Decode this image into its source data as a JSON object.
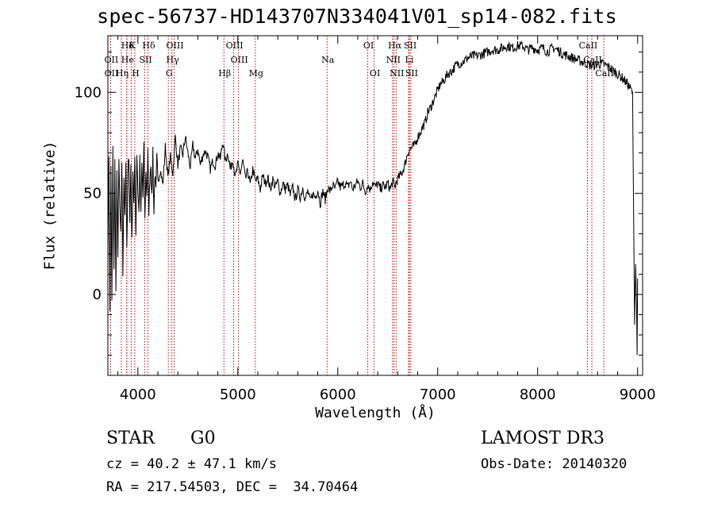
{
  "chart_data": {
    "type": "line",
    "title": "spec-56737-HD143707N334041V01_sp14-082.fits",
    "xlabel": "Wavelength (Å)",
    "ylabel": "Flux (relative)",
    "xlim": [
      3700,
      9050
    ],
    "ylim": [
      -40,
      128
    ],
    "xticks": [
      4000,
      5000,
      6000,
      7000,
      8000,
      9000
    ],
    "yticks": [
      0,
      50,
      100
    ],
    "series": [
      {
        "name": "flux",
        "x": [
          3700,
          3710,
          3720,
          3730,
          3740,
          3750,
          3760,
          3770,
          3780,
          3790,
          3800,
          3810,
          3820,
          3830,
          3840,
          3850,
          3860,
          3870,
          3880,
          3890,
          3900,
          3910,
          3920,
          3930,
          3940,
          3950,
          3960,
          3970,
          3980,
          3990,
          4000,
          4010,
          4020,
          4030,
          4040,
          4050,
          4060,
          4070,
          4080,
          4090,
          4100,
          4110,
          4120,
          4130,
          4140,
          4150,
          4160,
          4170,
          4180,
          4190,
          4200,
          4225,
          4250,
          4275,
          4300,
          4325,
          4350,
          4375,
          4400,
          4425,
          4450,
          4475,
          4500,
          4525,
          4550,
          4575,
          4600,
          4625,
          4650,
          4675,
          4700,
          4725,
          4750,
          4775,
          4800,
          4825,
          4850,
          4875,
          4900,
          4925,
          4950,
          4975,
          5000,
          5025,
          5050,
          5075,
          5100,
          5125,
          5150,
          5175,
          5200,
          5225,
          5250,
          5275,
          5300,
          5325,
          5350,
          5375,
          5400,
          5425,
          5450,
          5475,
          5500,
          5525,
          5550,
          5575,
          5600,
          5625,
          5650,
          5675,
          5700,
          5725,
          5750,
          5775,
          5800,
          5825,
          5850,
          5875,
          5900,
          5925,
          5950,
          5975,
          6000,
          6025,
          6050,
          6075,
          6100,
          6125,
          6150,
          6175,
          6200,
          6225,
          6250,
          6275,
          6300,
          6325,
          6350,
          6375,
          6400,
          6425,
          6450,
          6475,
          6500,
          6525,
          6550,
          6560,
          6570,
          6580,
          6600,
          6625,
          6650,
          6675,
          6700,
          6725,
          6750,
          6775,
          6800,
          6825,
          6850,
          6875,
          6900,
          6925,
          6950,
          6975,
          7000,
          7025,
          7050,
          7075,
          7100,
          7125,
          7150,
          7175,
          7200,
          7250,
          7300,
          7350,
          7400,
          7450,
          7500,
          7550,
          7600,
          7650,
          7700,
          7750,
          7800,
          7850,
          7900,
          7950,
          8000,
          8050,
          8100,
          8150,
          8200,
          8250,
          8300,
          8350,
          8400,
          8450,
          8500,
          8550,
          8600,
          8650,
          8700,
          8750,
          8800,
          8850,
          8900,
          8950,
          8960,
          8970,
          8980,
          8990,
          8995,
          9000
        ],
        "y": [
          20,
          70,
          -10,
          65,
          -5,
          72,
          10,
          68,
          0,
          60,
          15,
          70,
          40,
          30,
          62,
          10,
          55,
          42,
          66,
          20,
          58,
          70,
          35,
          65,
          25,
          62,
          44,
          68,
          30,
          70,
          52,
          40,
          66,
          38,
          64,
          48,
          72,
          36,
          60,
          50,
          70,
          42,
          58,
          66,
          46,
          72,
          40,
          60,
          50,
          67,
          56,
          62,
          54,
          73,
          58,
          68,
          60,
          78,
          64,
          72,
          69,
          78,
          70,
          63,
          74,
          67,
          72,
          64,
          69,
          71,
          68,
          62,
          66,
          64,
          70,
          67,
          76,
          66,
          70,
          62,
          67,
          58,
          64,
          60,
          66,
          57,
          61,
          54,
          62,
          56,
          57,
          52,
          59,
          55,
          58,
          52,
          57,
          53,
          56,
          50,
          55,
          52,
          54,
          49,
          53,
          47,
          52,
          48,
          53,
          47,
          51,
          46,
          50,
          48,
          52,
          45,
          51,
          47,
          53,
          51,
          54,
          52,
          56,
          53,
          54,
          55,
          53,
          56,
          52,
          54,
          56,
          53,
          55,
          51,
          54,
          52,
          56,
          53,
          55,
          52,
          54,
          53,
          55,
          52,
          56,
          54,
          53,
          55,
          57,
          59,
          61,
          65,
          70,
          72,
          73,
          74,
          78,
          80,
          83,
          85,
          90,
          92,
          95,
          98,
          101,
          104,
          105,
          107,
          109,
          110,
          111,
          113,
          114,
          115,
          117,
          118,
          118,
          119,
          120,
          121,
          121,
          122,
          123,
          122,
          123,
          123,
          121,
          122,
          121,
          122,
          120,
          122,
          121,
          119,
          118,
          117,
          116,
          115,
          114,
          113,
          114,
          114,
          113,
          111,
          109,
          107,
          104,
          100,
          40,
          -15,
          15,
          -5,
          -30,
          8
        ]
      }
    ],
    "lines": [
      {
        "name": "Hδ",
        "x": 4101,
        "row": 0
      },
      {
        "name": "K",
        "x": 3934,
        "row": 0
      },
      {
        "name": "Hδ",
        "x": 3889,
        "row": 0
      },
      {
        "name": "OII",
        "x": 3727,
        "row": 1
      },
      {
        "name": "He",
        "x": 3889,
        "row": 1
      },
      {
        "name": "SII",
        "x": 4069,
        "row": 1
      },
      {
        "name": "OII",
        "x": 3728,
        "row": 2
      },
      {
        "name": "Hη",
        "x": 3835,
        "row": 2
      },
      {
        "name": "H",
        "x": 3969,
        "row": 2
      },
      {
        "name": "OIII",
        "x": 4363,
        "row": 0
      },
      {
        "name": "Hγ",
        "x": 4340,
        "row": 1
      },
      {
        "name": "G",
        "x": 4305,
        "row": 2
      },
      {
        "name": "Hβ",
        "x": 4861,
        "row": 2
      },
      {
        "name": "OIII",
        "x": 4959,
        "row": 0
      },
      {
        "name": "OIII",
        "x": 5007,
        "row": 1
      },
      {
        "name": "Mg",
        "x": 5175,
        "row": 2
      },
      {
        "name": "Na",
        "x": 5893,
        "row": 1
      },
      {
        "name": "OI",
        "x": 6300,
        "row": 0
      },
      {
        "name": "OI",
        "x": 6364,
        "row": 2
      },
      {
        "name": "Hα",
        "x": 6563,
        "row": 0
      },
      {
        "name": "NII",
        "x": 6548,
        "row": 1
      },
      {
        "name": "NII",
        "x": 6584,
        "row": 2
      },
      {
        "name": "SII",
        "x": 6717,
        "row": 0
      },
      {
        "name": "Li",
        "x": 6708,
        "row": 1
      },
      {
        "name": "SII",
        "x": 6731,
        "row": 2
      },
      {
        "name": "CaII",
        "x": 8498,
        "row": 0
      },
      {
        "name": "CaII",
        "x": 8542,
        "row": 1
      },
      {
        "name": "CaII",
        "x": 8662,
        "row": 2
      }
    ]
  },
  "info": {
    "object_class": "STAR",
    "subclass": "G0",
    "survey": "LAMOST DR3",
    "redshift": "cz = 40.2 ± 47.1 km/s",
    "obs_date": "Obs-Date: 20140320",
    "coords": "RA = 217.54503, DEC =  34.70464"
  },
  "colors": {
    "axis": "#000000",
    "spectrum": "#000000",
    "lines": "#cc0000"
  }
}
